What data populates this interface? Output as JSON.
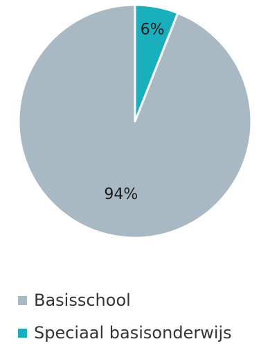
{
  "chart_data": {
    "type": "pie",
    "categories": [
      "Basisschool",
      "Speciaal basisonderwijs"
    ],
    "values": [
      94,
      6
    ],
    "labels": [
      "94%",
      "6%"
    ],
    "colors": [
      "#a9b9c4",
      "#1aafbd"
    ],
    "start": "12 o'clock",
    "direction": "counter-clockwise",
    "legend": "bottom-left"
  }
}
